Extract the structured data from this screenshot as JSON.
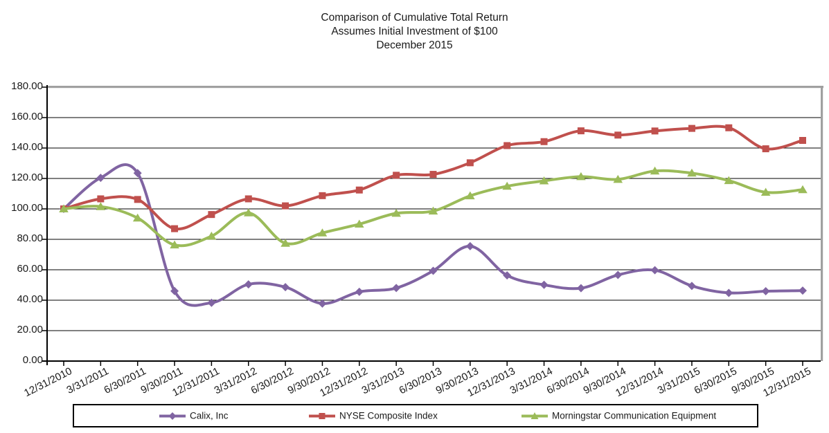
{
  "title": {
    "line1": "Comparison of Cumulative Total Return",
    "line2": "Assumes Initial Investment of $100",
    "line3": "December 2015"
  },
  "chart_data": {
    "type": "line",
    "smoothed": true,
    "title": "Comparison of Cumulative Total Return",
    "subtitle": "Assumes Initial Investment of $100",
    "period_label": "December 2015",
    "grid": "horizontal",
    "legend_position": "bottom",
    "xlabel": "",
    "ylabel": "",
    "y_axis": {
      "min": 0,
      "max": 180,
      "step": 20,
      "tick_labels": [
        "0.00",
        "20.00",
        "40.00",
        "60.00",
        "80.00",
        "100.00",
        "120.00",
        "140.00",
        "160.00",
        "180.00"
      ]
    },
    "categories": [
      "12/31/2010",
      "3/31/2011",
      "6/30/2011",
      "9/30/2011",
      "12/31/2011",
      "3/31/2012",
      "6/30/2012",
      "9/30/2012",
      "12/31/2012",
      "3/31/2013",
      "6/30/2013",
      "9/30/2013",
      "12/31/2013",
      "3/31/2014",
      "6/30/2014",
      "9/30/2014",
      "12/31/2014",
      "3/31/2015",
      "6/30/2015",
      "9/30/2015",
      "12/31/2015"
    ],
    "series": [
      {
        "name": "Calix, Inc",
        "marker": "diamond",
        "color": "#8064A2",
        "values": [
          100.0,
          120.4,
          123.5,
          46.0,
          38.3,
          50.4,
          48.6,
          37.8,
          45.5,
          48.0,
          59.3,
          75.5,
          56.3,
          50.1,
          47.9,
          56.6,
          59.7,
          49.4,
          44.8,
          45.9,
          46.3
        ]
      },
      {
        "name": "NYSE Composite Index",
        "marker": "square",
        "color": "#C0504D",
        "values": [
          100.0,
          106.6,
          106.2,
          87.0,
          96.3,
          106.6,
          102.0,
          108.7,
          112.4,
          122.1,
          122.7,
          130.3,
          141.6,
          144.2,
          151.3,
          148.5,
          151.2,
          152.9,
          153.3,
          139.5,
          145.0
        ]
      },
      {
        "name": "Morningstar Communication Equipment",
        "marker": "triangle",
        "color": "#9BBB59",
        "values": [
          100.0,
          101.5,
          94.0,
          76.3,
          82.1,
          97.4,
          77.4,
          84.2,
          90.0,
          97.1,
          98.6,
          108.6,
          114.9,
          118.4,
          121.2,
          119.4,
          124.9,
          123.5,
          118.6,
          110.9,
          112.6
        ]
      }
    ],
    "colors": {
      "gridline": "#000000",
      "axis": "#000000",
      "plot_border": "#a0a0a0",
      "text": "#1a1a1a",
      "background": "#ffffff"
    }
  }
}
